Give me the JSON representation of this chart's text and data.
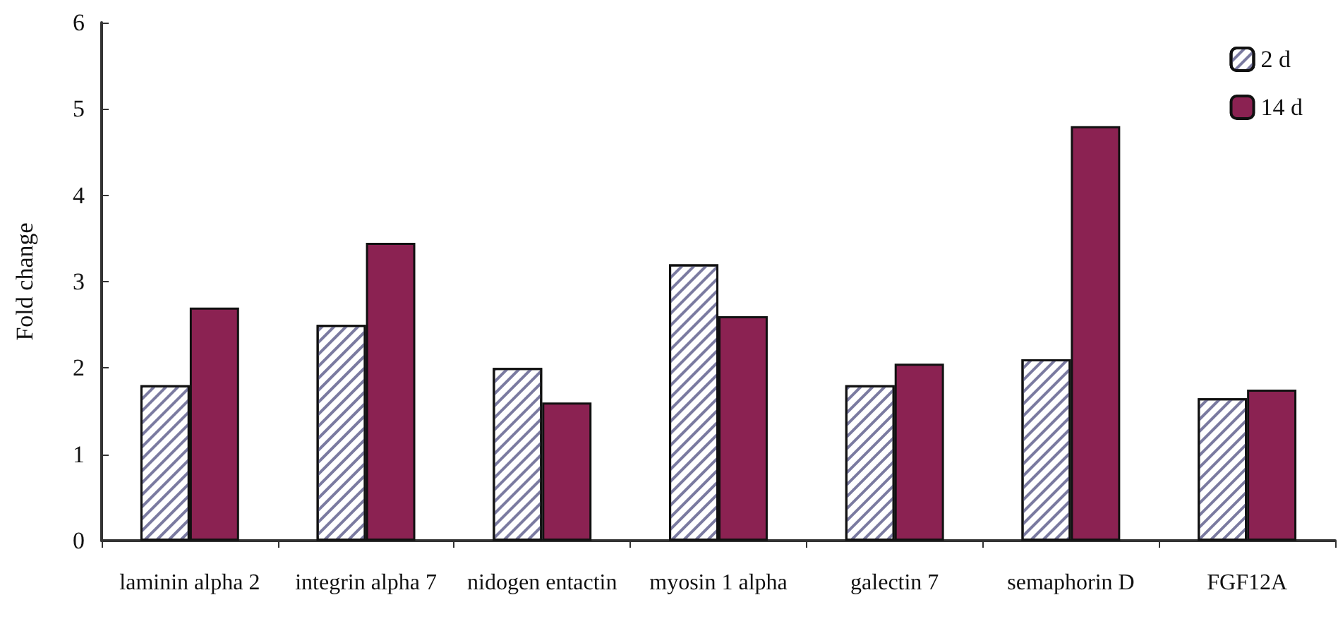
{
  "chart_data": {
    "type": "bar",
    "ylabel": "Fold change",
    "categories": [
      "laminin alpha 2",
      "integrin alpha 7",
      "nidogen entactin",
      "myosin 1 alpha",
      "galectin 7",
      "semaphorin D",
      "FGF12A"
    ],
    "series": [
      {
        "name": "2 d",
        "color": "#ffffff",
        "values": [
          1.8,
          2.5,
          2.0,
          3.2,
          1.8,
          2.1,
          1.65
        ]
      },
      {
        "name": "14 d",
        "color": "#8b2252",
        "values": [
          2.7,
          3.45,
          1.6,
          2.6,
          2.05,
          4.8,
          1.75
        ]
      }
    ],
    "ylim": [
      0,
      6
    ],
    "yticks": [
      0,
      1,
      2,
      3,
      4,
      5,
      6
    ],
    "grid": false,
    "legend": "top right"
  }
}
